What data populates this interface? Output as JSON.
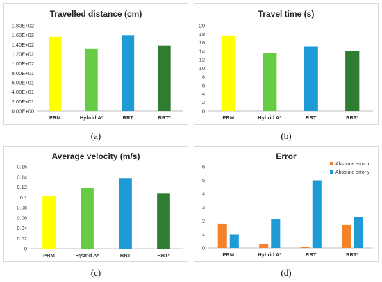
{
  "chart_data": [
    {
      "type": "bar",
      "title": "Travelled distance (cm)",
      "categories": [
        "PRM",
        "Hybrid A*",
        "RRT",
        "RRT*"
      ],
      "values": [
        157,
        132,
        159,
        138
      ],
      "ylim": [
        0,
        180
      ],
      "yticks": [
        "0.00E+00",
        "2.00E+01",
        "4.00E+01",
        "6.00E+01",
        "8.00E+01",
        "1.00E+02",
        "1.20E+02",
        "1.40E+02",
        "1.60E+02",
        "1.80E+02"
      ],
      "grid": false,
      "colors": [
        "#ffff00",
        "#66cc44",
        "#1e9ad6",
        "#2e7d32"
      ],
      "caption": "(a)"
    },
    {
      "type": "bar",
      "title": "Travel time (s)",
      "categories": [
        "PRM",
        "Hybrid A*",
        "RRT",
        "RRT*"
      ],
      "values": [
        17.6,
        13.6,
        15.2,
        14.1
      ],
      "ylim": [
        0,
        20
      ],
      "yticks": [
        "0",
        "2",
        "4",
        "6",
        "8",
        "10",
        "12",
        "14",
        "16",
        "18",
        "20"
      ],
      "grid": false,
      "colors": [
        "#ffff00",
        "#66cc44",
        "#1e9ad6",
        "#2e7d32"
      ],
      "caption": "(b)"
    },
    {
      "type": "bar",
      "title": "Average velocity (m/s)",
      "categories": [
        "PRM",
        "Hybrid A*",
        "RRT",
        "RRT*"
      ],
      "values": [
        0.103,
        0.119,
        0.138,
        0.108
      ],
      "ylim": [
        0,
        0.16
      ],
      "yticks": [
        "0",
        "0.02",
        "0.04",
        "0.06",
        "0.08",
        "0.1",
        "0.12",
        "0.14",
        "0.16"
      ],
      "grid": false,
      "colors": [
        "#ffff00",
        "#66cc44",
        "#1e9ad6",
        "#2e7d32"
      ],
      "caption": "(c)"
    },
    {
      "type": "bar",
      "title": "Error",
      "categories": [
        "PRM",
        "Hybrid A*",
        "RRT",
        "RRT*"
      ],
      "series": [
        {
          "name": "Absolute error x",
          "values": [
            1.8,
            0.3,
            0.1,
            1.7
          ],
          "color": "#f5822a"
        },
        {
          "name": "Absolute error y",
          "values": [
            1.0,
            2.1,
            5.0,
            2.3
          ],
          "color": "#1e9ad6"
        }
      ],
      "ylim": [
        0,
        6
      ],
      "yticks": [
        "0",
        "1",
        "2",
        "3",
        "4",
        "5",
        "6"
      ],
      "grid": false,
      "legend": "top-right",
      "caption": "(d)"
    }
  ]
}
